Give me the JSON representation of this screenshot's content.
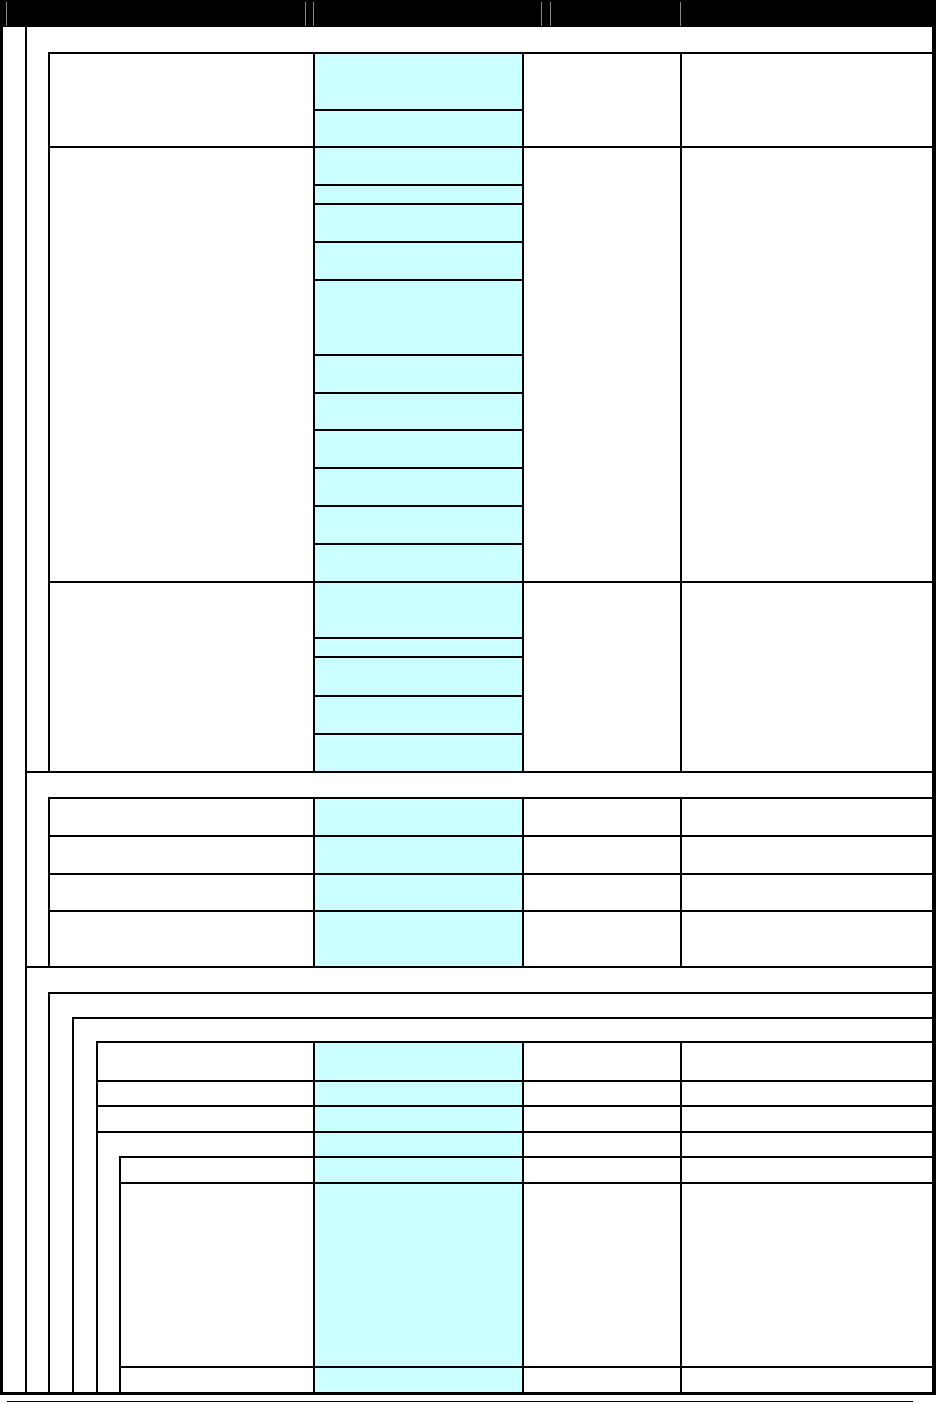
{
  "colors": {
    "header_background": "#000000",
    "highlight_column": "#ccffff",
    "grid_line": "#000000",
    "background": "#ffffff"
  }
}
